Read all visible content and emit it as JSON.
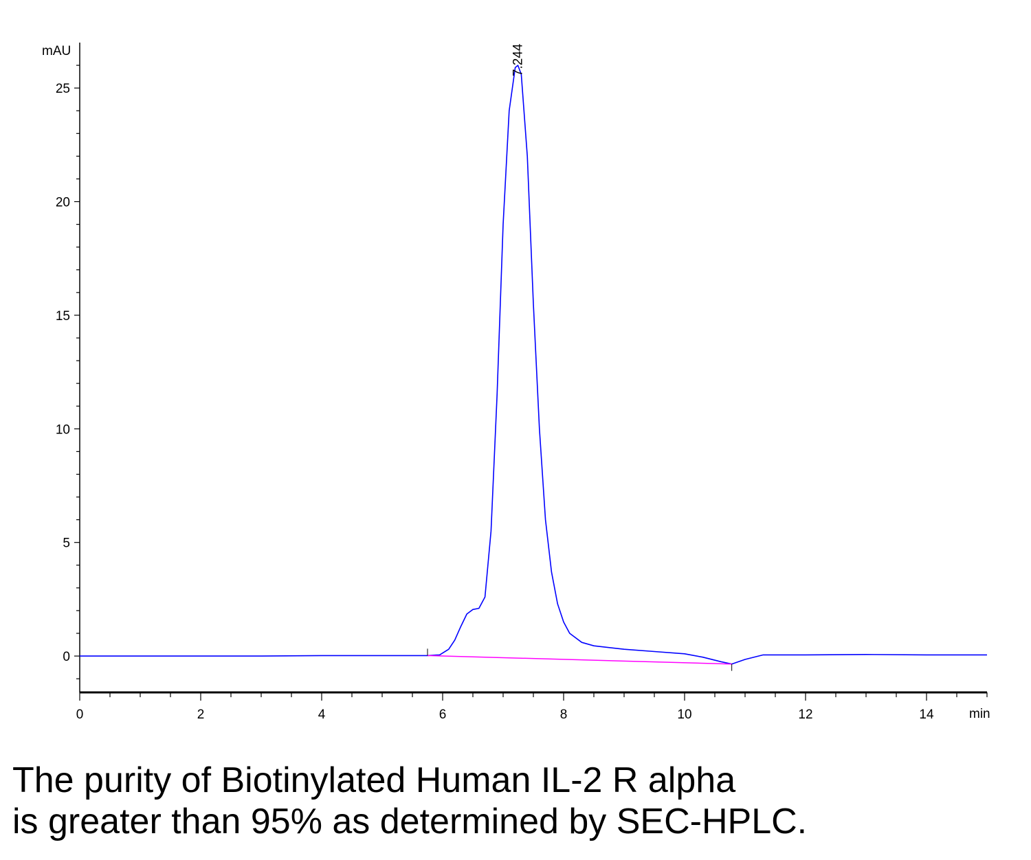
{
  "chart_data": {
    "type": "line",
    "ylabel": "mAU",
    "xlabel": "min",
    "xlim": [
      0,
      15
    ],
    "ylim": [
      -1.6,
      27
    ],
    "x_ticks": [
      0,
      2,
      4,
      6,
      8,
      10,
      12,
      14
    ],
    "y_ticks": [
      0,
      5,
      10,
      15,
      20,
      25
    ],
    "grid": false,
    "peak_annotations": [
      {
        "x": 7.244,
        "y": 26.0,
        "label": "7.244"
      }
    ],
    "series": [
      {
        "color": "#0000ff",
        "x": [
          0,
          1,
          2,
          3,
          4,
          5,
          5.75,
          5.95,
          6.1,
          6.2,
          6.3,
          6.4,
          6.5,
          6.6,
          6.7,
          6.8,
          6.9,
          7.0,
          7.1,
          7.2,
          7.244,
          7.3,
          7.4,
          7.5,
          7.6,
          7.7,
          7.8,
          7.9,
          8.0,
          8.1,
          8.3,
          8.5,
          9.0,
          9.5,
          10.0,
          10.3,
          10.6,
          10.78,
          11.0,
          11.3,
          12.0,
          13.0,
          14.0,
          15.0
        ],
        "values": [
          0.0,
          0.0,
          0.0,
          0.0,
          0.02,
          0.02,
          0.02,
          0.05,
          0.3,
          0.7,
          1.3,
          1.85,
          2.05,
          2.1,
          2.6,
          5.5,
          11.5,
          19.0,
          24.0,
          25.9,
          26.0,
          25.6,
          22.0,
          15.5,
          10.0,
          6.0,
          3.7,
          2.3,
          1.5,
          1.0,
          0.6,
          0.45,
          0.3,
          0.2,
          0.1,
          -0.05,
          -0.25,
          -0.35,
          -0.15,
          0.05,
          0.05,
          0.07,
          0.05,
          0.05
        ]
      },
      {
        "color": "#ff00ff",
        "x": [
          5.75,
          10.78
        ],
        "values": [
          0.02,
          -0.35
        ]
      }
    ]
  },
  "caption": {
    "line1": "The purity of Biotinylated Human IL-2 R alpha",
    "line2": "is greater than 95% as determined by SEC-HPLC."
  }
}
